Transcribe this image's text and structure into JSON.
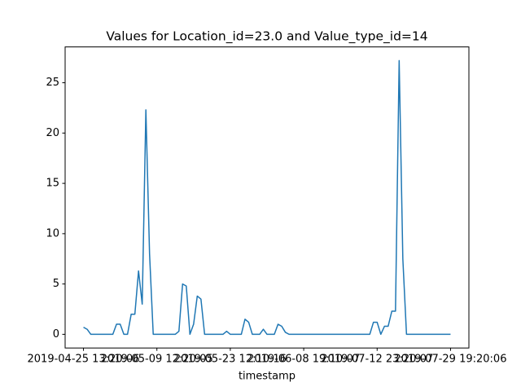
{
  "chart_data": {
    "type": "line",
    "title": "Values for Location_id=23.0 and Value_type_id=14",
    "x_label": "timestamp",
    "series": [
      {
        "color": "#1f77b4",
        "values": [
          0.7,
          0.5,
          0,
          0,
          0,
          0,
          0,
          0,
          0,
          1,
          1,
          0,
          0,
          2,
          2,
          6.3,
          3,
          22.3,
          8,
          0,
          0,
          0,
          0,
          0,
          0,
          0,
          0.3,
          5,
          4.8,
          0,
          1,
          3.8,
          3.5,
          0,
          0,
          0,
          0,
          0,
          0,
          0.3,
          0,
          0,
          0,
          0,
          1.5,
          1.2,
          0,
          0,
          0,
          0.5,
          0,
          0,
          0,
          1,
          0.8,
          0.2,
          0,
          0,
          0,
          0,
          0,
          0,
          0,
          0,
          0,
          0,
          0,
          0,
          0,
          0,
          0,
          0,
          0,
          0,
          0,
          0,
          0,
          0,
          0,
          1.2,
          1.2,
          0,
          0.8,
          0.8,
          2.3,
          2.3,
          27.2,
          7.5,
          0,
          0,
          0,
          0,
          0,
          0,
          0,
          0,
          0,
          0,
          0,
          0,
          0
        ]
      }
    ],
    "xlim": [
      -5,
      105
    ],
    "xticks": [
      {
        "value": 0,
        "label": "2019-04-25 13:20:06"
      },
      {
        "value": 20,
        "label": "2019-05-09 12:20:05"
      },
      {
        "value": 40,
        "label": "2019-05-23 12:10:16"
      },
      {
        "value": 60,
        "label": "2019-06-08 19:10:07"
      },
      {
        "value": 80,
        "label": "2019-07-12 23:20:07"
      },
      {
        "value": 100,
        "label": "2019-07-29 19:20:06"
      }
    ],
    "ylim": [
      -1.36,
      28.56
    ],
    "yticks": [
      0,
      5,
      10,
      15,
      20,
      25
    ]
  }
}
